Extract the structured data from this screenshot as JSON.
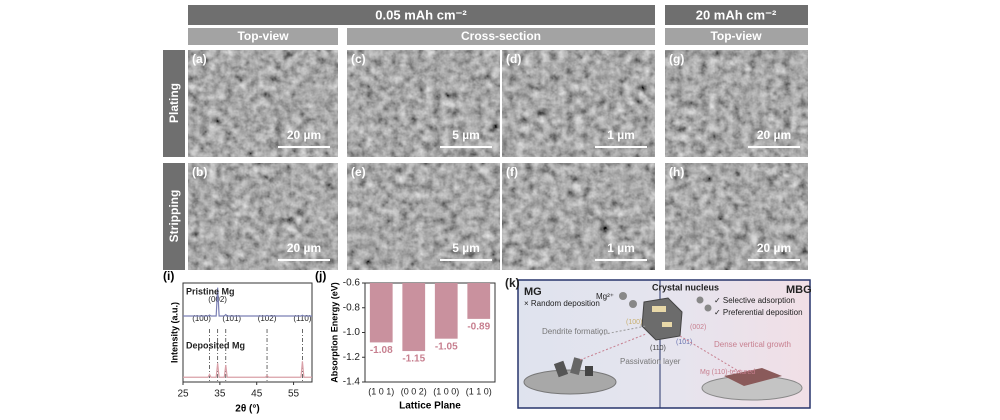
{
  "header": {
    "group1": "0.05 mAh cm⁻²",
    "group2": "20 mAh cm⁻²",
    "columns": [
      "Top-view",
      "Cross-section",
      "Top-view"
    ],
    "rows": [
      "Plating",
      "Stripping"
    ]
  },
  "panels": [
    {
      "label": "(a)",
      "scale": "20 µm"
    },
    {
      "label": "(b)",
      "scale": "20 µm"
    },
    {
      "label": "(c)",
      "scale": "5 µm"
    },
    {
      "label": "(d)",
      "scale": "1 µm"
    },
    {
      "label": "(e)",
      "scale": "5 µm"
    },
    {
      "label": "(f)",
      "scale": "1 µm"
    },
    {
      "label": "(g)",
      "scale": "20 µm"
    },
    {
      "label": "(h)",
      "scale": "20 µm"
    }
  ],
  "chart_data": [
    {
      "type": "line",
      "panel_label": "(i)",
      "xlabel": "2θ (°)",
      "ylabel": "Intensity (a.u.)",
      "x": [
        25,
        31.8,
        32.2,
        32.6,
        34.0,
        34.4,
        34.8,
        36.2,
        36.6,
        37.0,
        47.4,
        47.8,
        48.2,
        57.0,
        57.4,
        57.8,
        60
      ],
      "series": [
        {
          "name": "Pristine Mg",
          "color": "#7a7fb4",
          "values": [
            70,
            70,
            71,
            70,
            70,
            100,
            70,
            70,
            71.5,
            70,
            70,
            70.5,
            70,
            70,
            70.8,
            70,
            70
          ]
        },
        {
          "name": "Deposited Mg",
          "color": "#d9a0a8",
          "values": [
            5,
            5,
            8,
            5,
            5,
            20,
            5,
            5,
            18,
            5,
            5,
            7,
            5,
            5,
            22,
            5,
            5
          ]
        }
      ],
      "peaks": [
        {
          "label": "(100)",
          "x": 32.2
        },
        {
          "label": "(002)",
          "x": 34.4
        },
        {
          "label": "(101)",
          "x": 36.6
        },
        {
          "label": "(102)",
          "x": 47.8
        },
        {
          "label": "(110)",
          "x": 57.4
        }
      ],
      "xlim": [
        25,
        60
      ],
      "xticks": [
        25,
        35,
        45,
        55
      ],
      "ylim": [
        0,
        105
      ]
    },
    {
      "type": "bar",
      "panel_label": "(j)",
      "xlabel": "Lattice Plane",
      "ylabel": "Absorption Energy (eV)",
      "categories": [
        "(1 0 1)",
        "(0 0 2)",
        "(1 0 0)",
        "(1 1 0)"
      ],
      "values": [
        -1.08,
        -1.15,
        -1.05,
        -0.89
      ],
      "color": "#c9919e",
      "label_color": "#c77f8f",
      "ylim": [
        -1.4,
        -0.6
      ],
      "yticks": [
        -1.4,
        -1.2,
        {
          "value": -1,
          "label": "-1.0"
        },
        -0.8,
        -0.6
      ]
    }
  ],
  "diagram": {
    "panel_label": "(k)",
    "left_title": "MG",
    "left_note": "× Random deposition",
    "dendrite": "Dendrite formation",
    "passivation": "Passivation layer",
    "ion": "Mg²⁺",
    "nucleus": "Crystal nucleus",
    "right_title": "MBG",
    "right_note1": "✓ Selective adsorption",
    "right_note2": "✓ Preferential deposition",
    "facets": [
      "(002)",
      "(101)",
      "(100)",
      "(110)"
    ],
    "growth": "Dense vertical growth",
    "textured": "Mg (110)-textured"
  }
}
